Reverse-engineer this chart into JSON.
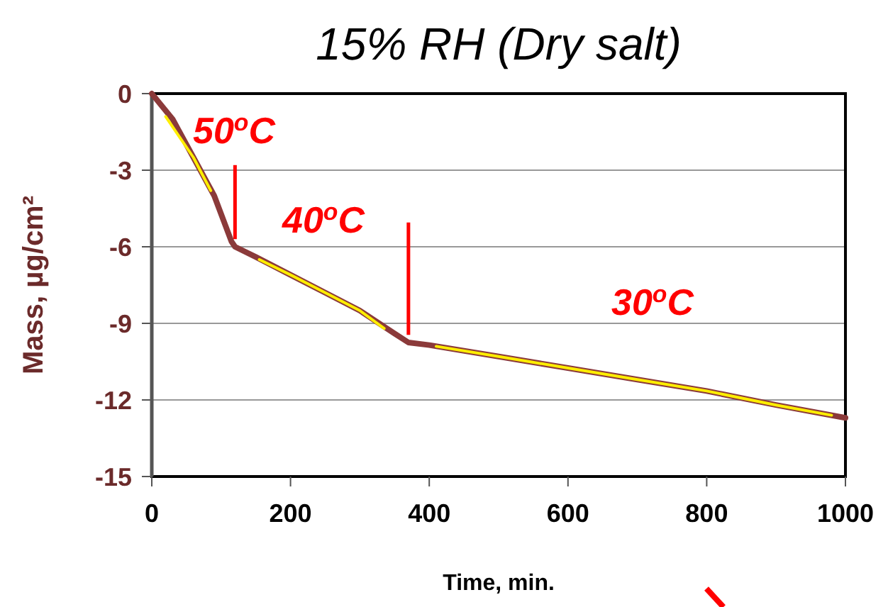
{
  "chart_data": {
    "type": "line",
    "title": "15% RH (Dry salt)",
    "xlabel": "Time, min.",
    "ylabel": "Mass, µg/cm²",
    "xlim": [
      0,
      1000
    ],
    "xticks": [
      0,
      200,
      400,
      600,
      800,
      1000
    ],
    "ylim": [
      -15,
      0
    ],
    "yticks": [
      -15,
      -12,
      -9,
      -6,
      -3,
      0
    ],
    "grid": "y",
    "marker": "none",
    "line_style": "solid",
    "series": [
      {
        "color": "#8b3a3a",
        "x": [
          0,
          30,
          60,
          90,
          115,
          120,
          150,
          200,
          250,
          300,
          350,
          370,
          400,
          500,
          600,
          700,
          800,
          900,
          1000
        ],
        "values": [
          0,
          -1,
          -2.5,
          -4,
          -5.8,
          -6,
          -6.4,
          -7.1,
          -7.8,
          -8.5,
          -9.4,
          -9.75,
          -9.85,
          -10.3,
          -10.75,
          -11.2,
          -11.65,
          -12.2,
          -12.7
        ]
      },
      {
        "color": "#ffee00",
        "x": [
          20,
          60,
          85,
          null,
          155,
          200,
          250,
          300,
          335,
          null,
          410,
          500,
          600,
          700,
          800,
          900,
          980
        ],
        "values": [
          -0.9,
          -2.5,
          -3.8,
          null,
          -6.5,
          -7.1,
          -7.8,
          -8.5,
          -9.2,
          null,
          -9.9,
          -10.3,
          -10.75,
          -11.2,
          -11.65,
          -12.2,
          -12.6
        ]
      }
    ],
    "ref_lines": [
      {
        "axis": "x",
        "value": 120,
        "color": "#ff0000"
      },
      {
        "axis": "x",
        "value": 370,
        "color": "#ff0000"
      }
    ],
    "annotations": [
      "50$^{o}$C",
      "40$^{o}$C",
      "30$^{o}$C"
    ]
  }
}
